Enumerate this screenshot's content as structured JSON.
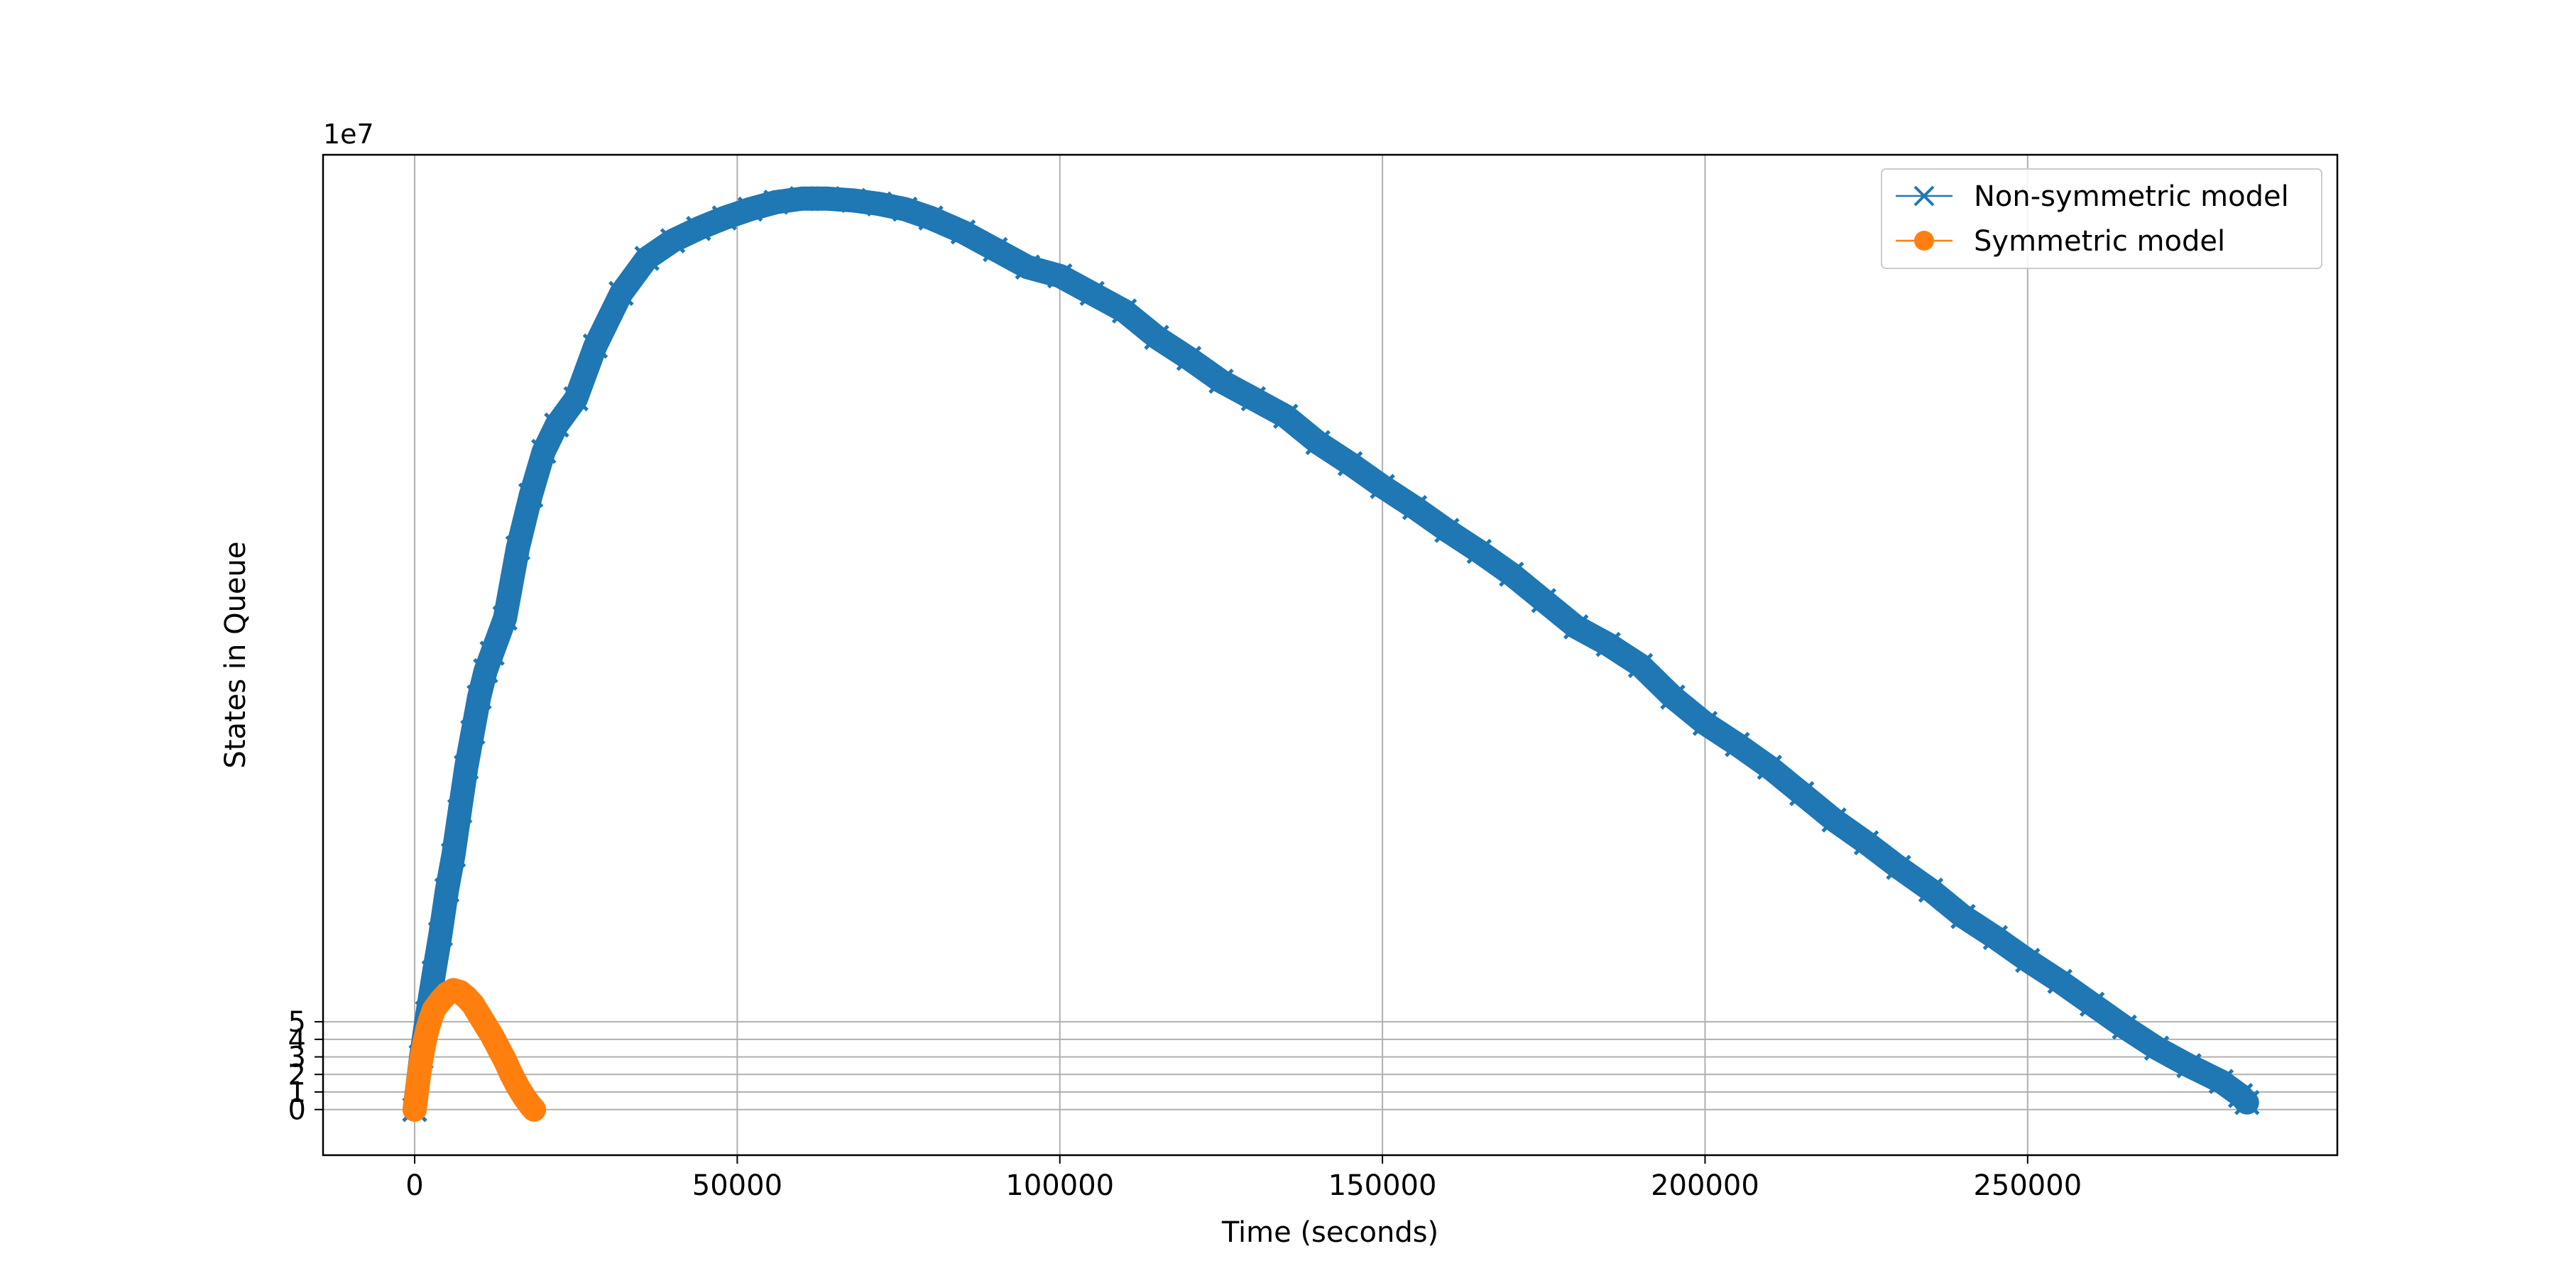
{
  "chart_data": {
    "type": "line",
    "title": "",
    "xlabel": "Time (seconds)",
    "ylabel": "States in Queue",
    "y_offset_label": "1e7",
    "xlim": [
      -14200,
      298000
    ],
    "ylim": [
      -2.6,
      54.4
    ],
    "x_ticks": [
      0,
      50000,
      100000,
      150000,
      200000,
      250000
    ],
    "x_tick_labels": [
      "0",
      "50000",
      "100000",
      "150000",
      "200000",
      "250000"
    ],
    "y_ticks": [
      0,
      1,
      2,
      3,
      4,
      5
    ],
    "y_tick_labels": [
      "0",
      "1",
      "2",
      "3",
      "4",
      "5"
    ],
    "grid": true,
    "legend_position": "top-right",
    "series": [
      {
        "name": "Non-symmetric model",
        "color": "#1f77b4",
        "marker": "x",
        "x": [
          0,
          1000,
          2000,
          3000,
          4000,
          5000,
          6000,
          7000,
          8000,
          9000,
          10000,
          11000,
          12000,
          14000,
          16000,
          18000,
          20000,
          22000,
          25000,
          28000,
          32000,
          36000,
          40000,
          44000,
          48000,
          52000,
          56000,
          60000,
          64000,
          68000,
          72000,
          76000,
          80000,
          85000,
          90000,
          95000,
          100000,
          105000,
          110000,
          115000,
          120000,
          125000,
          130000,
          135000,
          140000,
          145000,
          150000,
          155000,
          160000,
          165000,
          170000,
          175000,
          180000,
          185000,
          190000,
          195000,
          200000,
          205000,
          210000,
          215000,
          220000,
          225000,
          230000,
          235000,
          240000,
          245000,
          250000,
          255000,
          260000,
          265000,
          270000,
          275000,
          280000,
          283000,
          284000
        ],
        "y": [
          0,
          3.0,
          5.5,
          7.8,
          10.0,
          12.5,
          14.5,
          17.0,
          19.5,
          21.5,
          23.5,
          25.0,
          26.0,
          28.0,
          32.0,
          35.0,
          37.5,
          39.0,
          40.5,
          43.5,
          46.5,
          48.5,
          49.5,
          50.2,
          50.8,
          51.3,
          51.7,
          51.9,
          51.9,
          51.8,
          51.6,
          51.3,
          50.8,
          50.0,
          49.0,
          48.0,
          47.5,
          46.5,
          45.5,
          44.0,
          42.8,
          41.5,
          40.5,
          39.5,
          38.0,
          36.8,
          35.5,
          34.3,
          33.0,
          31.8,
          30.5,
          29.0,
          27.5,
          26.5,
          25.3,
          23.5,
          22.0,
          20.8,
          19.5,
          18.0,
          16.5,
          15.2,
          13.8,
          12.5,
          11.0,
          9.8,
          8.5,
          7.3,
          6.0,
          4.7,
          3.5,
          2.5,
          1.6,
          0.8,
          0.4
        ]
      },
      {
        "name": "Symmetric model",
        "color": "#ff7f0e",
        "marker": "o",
        "x": [
          0,
          500,
          1000,
          1500,
          2000,
          2500,
          3000,
          4000,
          5000,
          6000,
          7000,
          8000,
          9000,
          10000,
          11000,
          12000,
          13000,
          14000,
          15000,
          16000,
          17000,
          18000,
          18500
        ],
        "y": [
          0,
          1.5,
          2.8,
          3.8,
          4.6,
          5.2,
          5.7,
          6.2,
          6.6,
          6.8,
          6.7,
          6.4,
          6.0,
          5.4,
          4.8,
          4.2,
          3.5,
          2.8,
          2.0,
          1.3,
          0.7,
          0.2,
          0.0
        ]
      }
    ]
  }
}
